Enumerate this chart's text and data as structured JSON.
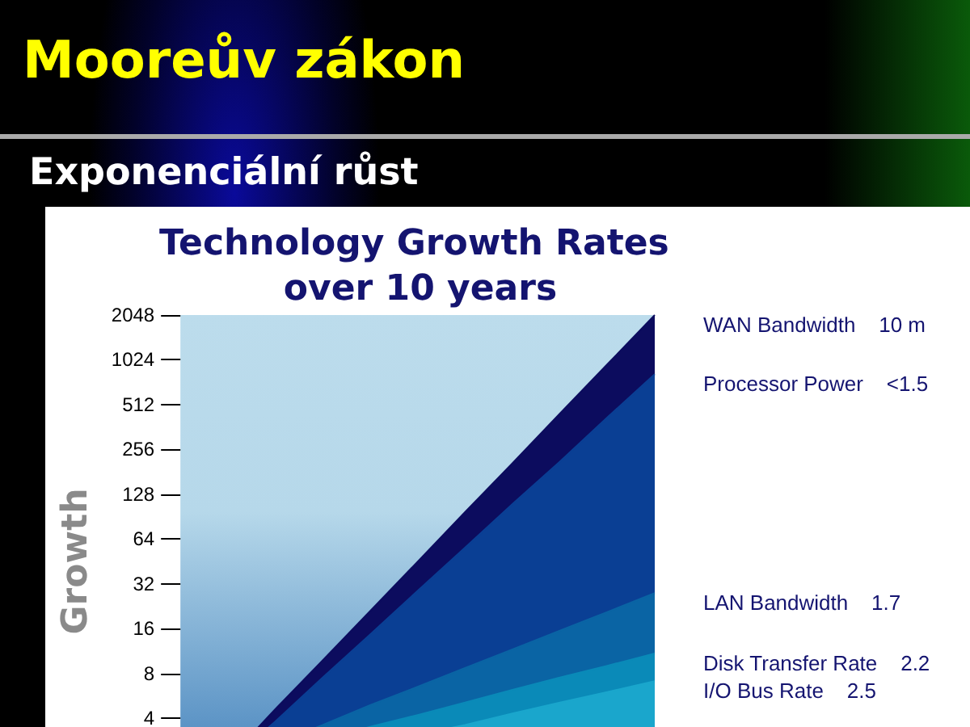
{
  "chart_data": {
    "type": "area",
    "title": "Mooreův zákon",
    "subtitle": "Exponenciální růst",
    "ylabel": "Growth",
    "annotations": [
      "Technology Growth Rates over 10 years",
      "10 m",
      "<1.5",
      "1.7",
      "2.2",
      "2.5"
    ],
    "categories": [
      null,
      null,
      null,
      null,
      null,
      null,
      null,
      null,
      null,
      null,
      null
    ],
    "series": [
      {
        "name": "WAN Bandwidth",
        "color": "#0c0c5e",
        "values": [
          1.0,
          2.1,
          4.6,
          9.8,
          21,
          45,
          97,
          207,
          446,
          955,
          2048
        ]
      },
      {
        "name": "Processor Power",
        "color": "#0a3f94",
        "values": [
          1.0,
          2.0,
          3.8,
          7.5,
          14.6,
          28.7,
          56,
          110,
          212,
          420,
          820
        ]
      },
      {
        "name": "LAN Bandwidth",
        "color": "#0a64a4",
        "values": [
          1.5,
          2.0,
          2.7,
          3.6,
          4.9,
          6.5,
          8.7,
          11.6,
          15.5,
          20.7,
          27.7
        ]
      },
      {
        "name": "Disk Transfer Rate",
        "color": "#0a8ab8",
        "values": [
          1.6,
          2.0,
          2.4,
          2.9,
          3.5,
          4.2,
          5.1,
          6.2,
          7.5,
          9.0,
          10.9
        ]
      },
      {
        "name": "I/O Bus Rate",
        "color": "#1aa6cc",
        "values": [
          1.4,
          1.6,
          1.9,
          2.2,
          2.6,
          3.1,
          3.6,
          4.3,
          5.1,
          6.0,
          7.1
        ]
      }
    ],
    "log": "y",
    "ylim": [
      1,
      2048
    ],
    "yticks": [
      4,
      8,
      16,
      32,
      64,
      128,
      256,
      512,
      1024,
      2048
    ],
    "grid": false,
    "tick_labels": "y",
    "marker": "none"
  }
}
